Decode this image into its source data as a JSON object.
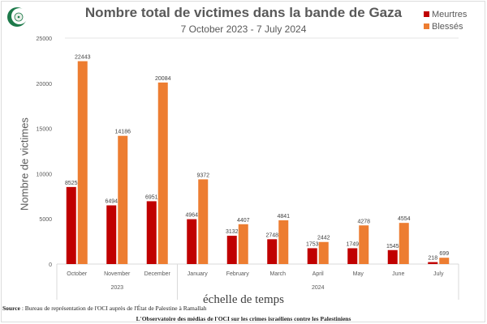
{
  "chart_data": {
    "type": "bar",
    "title": "Nombre total de victimes dans la bande de Gaza",
    "subtitle": "7 October 2023 - 7 July 2024",
    "xlabel": "échelle de temps",
    "ylabel": "Nombre de victimes",
    "categories": [
      "October",
      "November",
      "December",
      "January",
      "February",
      "March",
      "April",
      "May",
      "June",
      "July"
    ],
    "year_groups": [
      {
        "label": "2023",
        "count": 3
      },
      {
        "label": "2024",
        "count": 7
      }
    ],
    "series": [
      {
        "name": "Meurtres",
        "color": "#c00000",
        "values": [
          8525,
          6494,
          6951,
          4964,
          3132,
          2748,
          1753,
          1749,
          1545,
          218
        ]
      },
      {
        "name": "Blessés",
        "color": "#ed7d31",
        "values": [
          22443,
          14186,
          20084,
          9372,
          4407,
          4841,
          2442,
          4278,
          4554,
          699
        ]
      }
    ],
    "ylim": [
      0,
      25000
    ],
    "yticks": [
      0,
      5000,
      10000,
      15000,
      20000,
      25000
    ],
    "legend_position": "top-right",
    "grid": false
  },
  "source_label": "Source",
  "source_text": " : Bureau de représentation de l'OCI auprès de l'État de Palestine à Ramallah",
  "footer": "L'Observatoire des médias de l'OCI sur les crimes israéliens contre les Palestiniens"
}
